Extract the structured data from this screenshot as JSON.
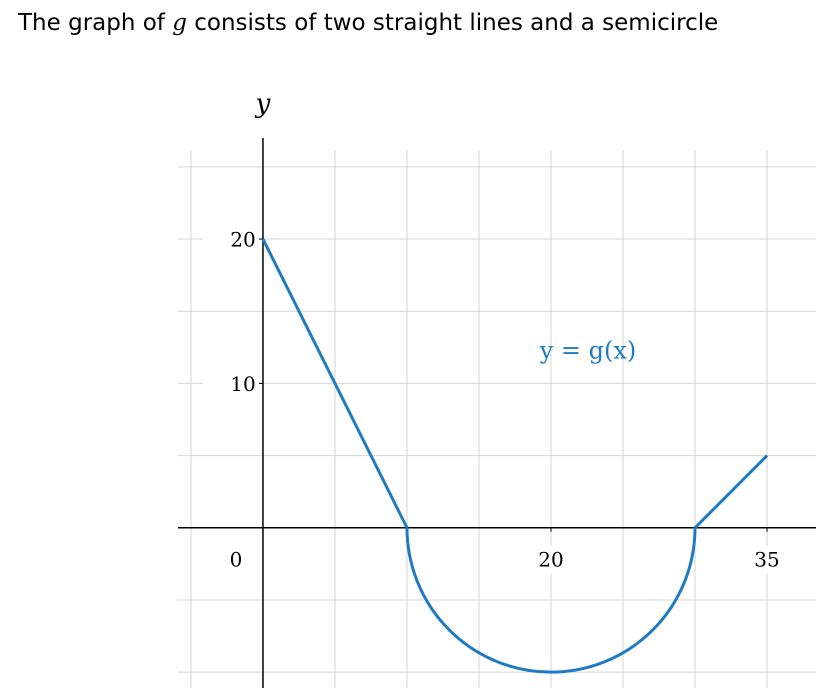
{
  "chart_data": {
    "type": "function",
    "title": [
      "The graph of ",
      "g",
      " consists of two straight lines and a semicircle"
    ],
    "ylabel": "y",
    "annotation": "y = g(x)",
    "color": "#1f7bc1",
    "xlim": [
      -5.9,
      38.4
    ],
    "ylim": [
      -11.1,
      27
    ],
    "xticks": [
      0,
      20,
      35
    ],
    "yticks": [
      10,
      20
    ],
    "xgrid": [
      -5,
      0,
      5,
      10,
      15,
      20,
      25,
      30,
      35
    ],
    "ygrid": [
      -10,
      -5,
      0,
      5,
      10,
      15,
      20,
      25
    ],
    "grid": true,
    "curves": [
      {
        "type": "line",
        "x": [
          0,
          10
        ],
        "y": [
          20,
          0
        ]
      },
      {
        "type": "semicircle",
        "center": [
          20,
          0
        ],
        "radius": 10
      },
      {
        "type": "line",
        "x": [
          30,
          35
        ],
        "y": [
          0,
          5
        ]
      }
    ]
  }
}
